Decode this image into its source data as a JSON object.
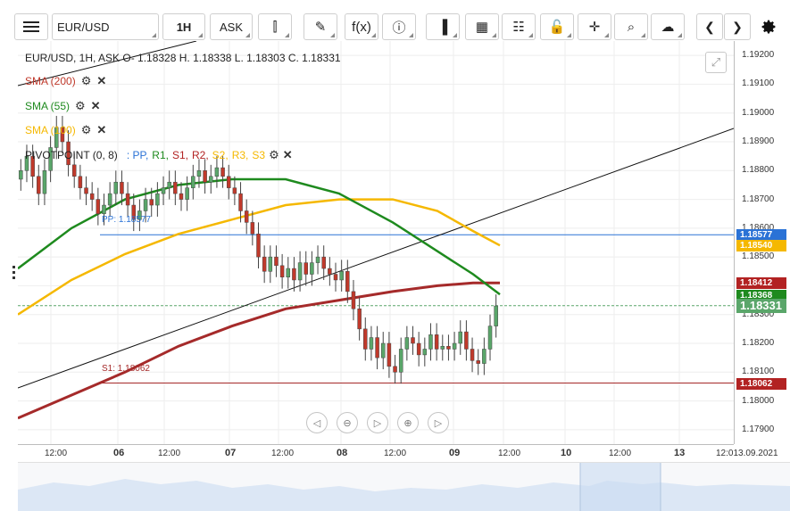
{
  "toolbar": {
    "menu_icon": "hamburger-icon",
    "symbol": "EUR/USD",
    "interval": "1H",
    "price_type": "ASK",
    "buttons": [
      {
        "name": "candle-type-icon",
        "glyph": "⫿"
      },
      {
        "name": "draw-pen-icon",
        "glyph": "✎"
      },
      {
        "name": "function-icon",
        "glyph": "f(x)"
      },
      {
        "name": "info-icon",
        "glyph": "ⓘ"
      },
      {
        "name": "volume-bars-icon",
        "glyph": "▐"
      },
      {
        "name": "calendar-icon",
        "glyph": "▦"
      },
      {
        "name": "news-icon",
        "glyph": "☷"
      },
      {
        "name": "lock-icon",
        "glyph": "🔓"
      },
      {
        "name": "crosshair-icon",
        "glyph": "✛"
      },
      {
        "name": "zoom-search-icon",
        "glyph": "⌕"
      },
      {
        "name": "cloud-upload-icon",
        "glyph": "☁"
      }
    ],
    "prev_label": "❮",
    "next_label": "❯",
    "settings_icon": "gear-icon"
  },
  "legend": {
    "ohlc": "EUR/USD, 1H, ASK  O- 1.18328 H. 1.18338 L. 1.18303 C. 1.18331",
    "indicators": [
      {
        "label": "SMA (200)",
        "color": "#c0392b"
      },
      {
        "label": "SMA (55)",
        "color": "#1e8a1e"
      },
      {
        "label": "SMA (100)",
        "color": "#f5b800"
      }
    ],
    "pivot": {
      "label": "PIVOTPOINT (0, 8)",
      "parts": [
        {
          "text": ": PP,",
          "color": "#2a72d6"
        },
        {
          "text": "R1,",
          "color": "#1e8a1e"
        },
        {
          "text": "S1,",
          "color": "#b22222"
        },
        {
          "text": "R2,",
          "color": "#b22222"
        },
        {
          "text": "S2,",
          "color": "#f5b800"
        },
        {
          "text": "R3,",
          "color": "#f5b800"
        },
        {
          "text": "S3",
          "color": "#f5b800"
        }
      ]
    },
    "pp_label": "PP: 1.18577",
    "s1_label": "S1: 1.18062"
  },
  "price_axis": {
    "ticks": [
      "1.19200",
      "1.19100",
      "1.19000",
      "1.18900",
      "1.18800",
      "1.18700",
      "1.18600",
      "1.18500",
      "1.18400",
      "1.18300",
      "1.18200",
      "1.18100",
      "1.18000",
      "1.17900"
    ],
    "tags": [
      {
        "value": "1.18577",
        "color": "#2a72d6"
      },
      {
        "value": "1.18540",
        "color": "#f5b800"
      },
      {
        "value": "1.18412",
        "color": "#b22222"
      },
      {
        "value": "1.18368",
        "color": "#1e8a1e"
      },
      {
        "value": "1.18331",
        "color": "#5aa66a"
      },
      {
        "value": "1.18062",
        "color": "#b22222"
      }
    ]
  },
  "time_axis": {
    "ticks": [
      {
        "label": "12:00",
        "day": false
      },
      {
        "label": "06",
        "day": true
      },
      {
        "label": "12:00",
        "day": false
      },
      {
        "label": "07",
        "day": true
      },
      {
        "label": "12:00",
        "day": false
      },
      {
        "label": "08",
        "day": true
      },
      {
        "label": "12:00",
        "day": false
      },
      {
        "label": "09",
        "day": true
      },
      {
        "label": "12:00",
        "day": false
      },
      {
        "label": "10",
        "day": true
      },
      {
        "label": "12:00",
        "day": false
      },
      {
        "label": "13",
        "day": true
      },
      {
        "label": "12:013.09.2021",
        "day": false
      }
    ]
  },
  "zoom_controls": [
    {
      "name": "scroll-left-icon",
      "glyph": "◁"
    },
    {
      "name": "zoom-out-icon",
      "glyph": "⊖"
    },
    {
      "name": "reset-zoom-icon",
      "glyph": "▷"
    },
    {
      "name": "zoom-in-icon",
      "glyph": "⊕"
    },
    {
      "name": "scroll-right-icon",
      "glyph": "▷"
    }
  ],
  "colors": {
    "sma200": "#a52a2a",
    "sma55": "#1e8a1e",
    "sma100": "#f5b800",
    "pp": "#2a72d6",
    "s1": "#a52a2a",
    "bull": "#5aa66a",
    "bear": "#c0392b",
    "wick": "#444444"
  },
  "chart_data": {
    "type": "line",
    "ylim": [
      1.1785,
      1.1925
    ],
    "series": [
      {
        "name": "SMA (200)",
        "values": [
          1.1794,
          1.1802,
          1.181,
          1.1819,
          1.1826,
          1.1832,
          1.1835,
          1.1838,
          1.184,
          1.1841,
          1.1841
        ]
      },
      {
        "name": "SMA (55)",
        "values": [
          1.1846,
          1.186,
          1.187,
          1.1875,
          1.1877,
          1.1877,
          1.1872,
          1.1862,
          1.1852,
          1.1844,
          1.1837
        ]
      },
      {
        "name": "SMA (100)",
        "values": [
          1.183,
          1.1842,
          1.1851,
          1.1858,
          1.1863,
          1.1868,
          1.187,
          1.187,
          1.1866,
          1.1859,
          1.1854
        ]
      }
    ],
    "pivot_levels": {
      "PP": 1.18577,
      "S1": 1.18062
    }
  }
}
